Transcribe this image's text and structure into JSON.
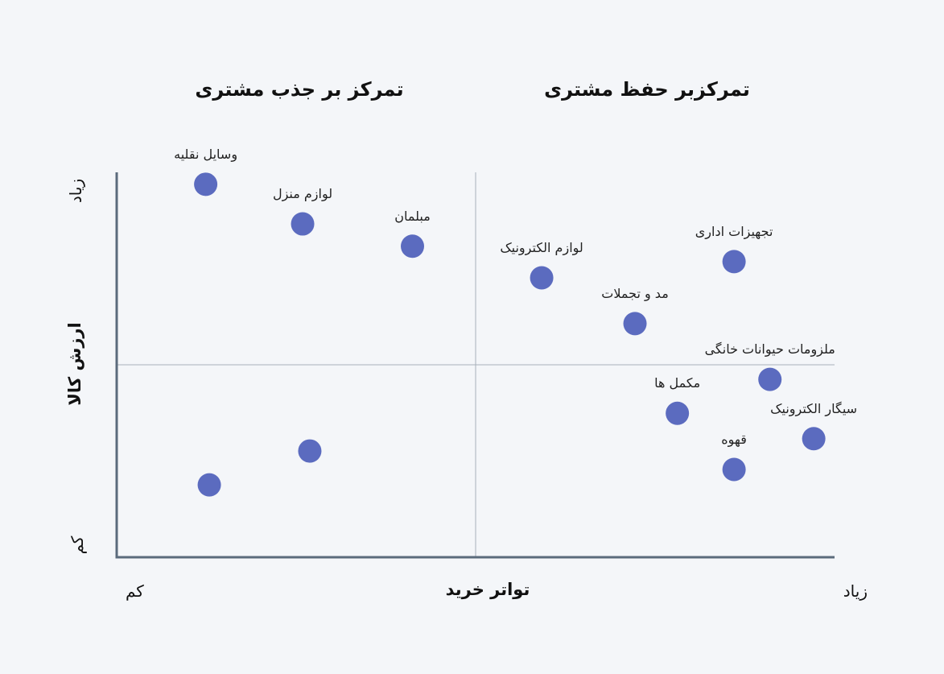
{
  "chart_data": {
    "type": "scatter",
    "quadrants": {
      "left_title": "تمرکز بر جذب مشتری",
      "right_title": "تمرکزبر حفظ مشتری"
    },
    "xlabel": "تواتر خرید",
    "ylabel": "ارزش کالا",
    "x_low_label": "کم",
    "x_high_label": "زیاد",
    "y_low_label": "کم",
    "y_high_label": "زیاد",
    "xlim": [
      0,
      100
    ],
    "ylim": [
      0,
      100
    ],
    "midpoint": [
      50,
      50
    ],
    "point_color": "#5b6bbf",
    "axis_color": "#5b6b7c",
    "divider_color": "#a7b0ba",
    "points": [
      {
        "label": "وسایل نقلیه",
        "x": 12.4,
        "y": 96.9
      },
      {
        "label": "لوازم منزل",
        "x": 25.9,
        "y": 86.6
      },
      {
        "label": "مبلمان",
        "x": 41.2,
        "y": 80.8
      },
      {
        "label": "لوازم الکترونیک",
        "x": 59.2,
        "y": 72.6
      },
      {
        "label": "مد و تجملات",
        "x": 72.2,
        "y": 60.7
      },
      {
        "label": "تجهیزات اداری",
        "x": 86.0,
        "y": 76.8
      },
      {
        "label": "ملزومات حیوانات خانگی",
        "x": 91.0,
        "y": 46.2
      },
      {
        "label": "مکمل ها",
        "x": 78.1,
        "y": 37.4
      },
      {
        "label": "سیگار الکترونیک",
        "x": 97.1,
        "y": 30.8
      },
      {
        "label": "قهوه",
        "x": 86.0,
        "y": 22.8
      },
      {
        "label": "",
        "x": 26.9,
        "y": 27.6
      },
      {
        "label": "",
        "x": 12.9,
        "y": 18.8
      }
    ]
  }
}
